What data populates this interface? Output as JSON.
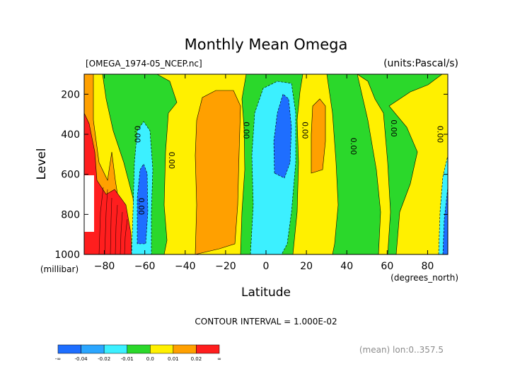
{
  "chart_data": {
    "type": "heatmap",
    "subtype": "filled-contour",
    "title": "Monthly Mean Omega",
    "file_label": "[OMEGA_1974-05_NCEP.nc]",
    "units_label": "(units:Pascal/s)",
    "xlabel": "Latitude",
    "x_units": "(degrees_north)",
    "ylabel": "Level",
    "y_units": "(millibar)",
    "xlim": [
      -90,
      90
    ],
    "ylim": [
      1000,
      100
    ],
    "x_ticks": [
      -80,
      -60,
      -40,
      -20,
      0,
      20,
      40,
      60,
      80
    ],
    "x_tick_labels": [
      "−80",
      "−60",
      "−40",
      "−20",
      "0",
      "20",
      "40",
      "60",
      "80"
    ],
    "y_ticks": [
      200,
      400,
      600,
      800,
      1000
    ],
    "y_tick_labels": [
      "200",
      "400",
      "600",
      "800",
      "1000"
    ],
    "contour_interval_text": "CONTOUR INTERVAL = 1.000E-02",
    "mean_text": "(mean) lon:0..357.5",
    "contour_labels": [
      {
        "lat": -65,
        "level": 400,
        "text": "0.00"
      },
      {
        "lat": -48,
        "level": 530,
        "text": "0.00"
      },
      {
        "lat": -11,
        "level": 380,
        "text": "0.00"
      },
      {
        "lat": 18,
        "level": 380,
        "text": "0.00"
      },
      {
        "lat": 42,
        "level": 460,
        "text": "0.00"
      },
      {
        "lat": 62,
        "level": 370,
        "text": "0.00"
      },
      {
        "lat": 85,
        "level": 400,
        "text": "0.00"
      },
      {
        "lat": -63,
        "level": 760,
        "text": "0.00"
      }
    ],
    "colorbar": {
      "colors": [
        "#1e6eff",
        "#2ba6ff",
        "#3cf0ff",
        "#2bd82b",
        "#fff000",
        "#ffa000",
        "#ff1e1e"
      ],
      "boundary_labels": [
        "-∞",
        "-0.04",
        "-0.02",
        "-0.01",
        "0.0",
        "0.01",
        "0.02",
        "∞"
      ]
    },
    "regions": [
      {
        "name": "bg-green",
        "color": "#2bd82b"
      },
      {
        "name": "sh-orange-band",
        "color": "#ffa000"
      },
      {
        "name": "sh-red-surface",
        "color": "#ff1e1e"
      },
      {
        "name": "sh-cyan",
        "color": "#3cf0ff"
      },
      {
        "name": "sh-blue",
        "color": "#1e6eff"
      },
      {
        "name": "subtropic-yellow",
        "color": "#fff000"
      },
      {
        "name": "subtropic-orange",
        "color": "#ffa000"
      },
      {
        "name": "itcz-cyan",
        "color": "#3cf0ff"
      },
      {
        "name": "itcz-blue",
        "color": "#1e6eff"
      },
      {
        "name": "nh-yellow",
        "color": "#fff000"
      },
      {
        "name": "nh-orange",
        "color": "#ffa000"
      },
      {
        "name": "nh-yellow-2",
        "color": "#fff000"
      },
      {
        "name": "north-yellow",
        "color": "#fff000"
      },
      {
        "name": "north-cyan",
        "color": "#3cf0ff"
      },
      {
        "name": "north-blue",
        "color": "#1e6eff"
      }
    ]
  }
}
